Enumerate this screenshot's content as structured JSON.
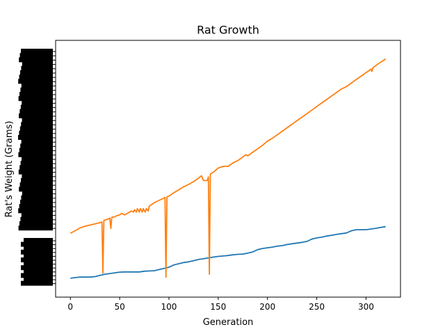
{
  "chart_data": {
    "type": "line",
    "title": "Rat Growth",
    "xlabel": "Generation",
    "ylabel": "Rat's Weight (Grams)",
    "xlim": [
      -15,
      335
    ],
    "ylim": [
      0,
      100
    ],
    "x_ticks": [
      0,
      50,
      100,
      150,
      200,
      250,
      300
    ],
    "y_tick_label_note": "dense overlapping unreadable labels along y axis",
    "grid": false,
    "legend": "none",
    "series": [
      {
        "color": "#1f77b4",
        "points": [
          [
            0,
            3.3
          ],
          [
            5,
            3.6
          ],
          [
            10,
            3.8
          ],
          [
            15,
            3.8
          ],
          [
            20,
            3.8
          ],
          [
            25,
            4.0
          ],
          [
            30,
            4.5
          ],
          [
            35,
            5.0
          ],
          [
            40,
            5.3
          ],
          [
            45,
            5.6
          ],
          [
            50,
            5.9
          ],
          [
            55,
            6.0
          ],
          [
            60,
            6.0
          ],
          [
            65,
            6.0
          ],
          [
            70,
            6.0
          ],
          [
            75,
            6.3
          ],
          [
            80,
            6.4
          ],
          [
            85,
            6.5
          ],
          [
            90,
            7.0
          ],
          [
            95,
            7.5
          ],
          [
            100,
            8.0
          ],
          [
            105,
            9.0
          ],
          [
            110,
            9.5
          ],
          [
            115,
            10.0
          ],
          [
            120,
            10.3
          ],
          [
            125,
            10.8
          ],
          [
            130,
            11.3
          ],
          [
            135,
            11.6
          ],
          [
            140,
            12.0
          ],
          [
            145,
            12.3
          ],
          [
            150,
            12.6
          ],
          [
            155,
            12.8
          ],
          [
            160,
            13.0
          ],
          [
            165,
            13.3
          ],
          [
            170,
            13.5
          ],
          [
            175,
            13.6
          ],
          [
            180,
            14.0
          ],
          [
            185,
            14.5
          ],
          [
            190,
            15.5
          ],
          [
            195,
            16.0
          ],
          [
            200,
            16.3
          ],
          [
            205,
            16.6
          ],
          [
            210,
            17.0
          ],
          [
            215,
            17.2
          ],
          [
            220,
            17.7
          ],
          [
            225,
            18.0
          ],
          [
            230,
            18.3
          ],
          [
            235,
            18.6
          ],
          [
            240,
            19.0
          ],
          [
            245,
            20.0
          ],
          [
            250,
            20.5
          ],
          [
            255,
            20.8
          ],
          [
            260,
            21.3
          ],
          [
            265,
            21.6
          ],
          [
            270,
            22.0
          ],
          [
            275,
            22.3
          ],
          [
            280,
            22.6
          ],
          [
            285,
            23.5
          ],
          [
            290,
            24.0
          ],
          [
            295,
            24.0
          ],
          [
            300,
            24.0
          ],
          [
            305,
            24.3
          ],
          [
            310,
            24.6
          ],
          [
            315,
            25.0
          ],
          [
            320,
            25.3
          ]
        ]
      },
      {
        "color": "#ff7f0e",
        "points": [
          [
            0,
            22.5
          ],
          [
            5,
            23.6
          ],
          [
            10,
            24.8
          ],
          [
            15,
            25.5
          ],
          [
            20,
            26.0
          ],
          [
            25,
            26.5
          ],
          [
            30,
            27.0
          ],
          [
            32,
            27.3
          ],
          [
            33,
            5.5
          ],
          [
            34,
            28.0
          ],
          [
            38,
            28.5
          ],
          [
            40,
            29.0
          ],
          [
            41,
            24.5
          ],
          [
            42,
            29.3
          ],
          [
            45,
            29.5
          ],
          [
            47,
            30.0
          ],
          [
            50,
            30.3
          ],
          [
            52,
            31.0
          ],
          [
            55,
            30.3
          ],
          [
            60,
            31.5
          ],
          [
            62,
            32.0
          ],
          [
            64,
            31.5
          ],
          [
            65,
            32.5
          ],
          [
            67,
            31.5
          ],
          [
            68,
            33.0
          ],
          [
            70,
            31.5
          ],
          [
            71,
            33.0
          ],
          [
            73,
            31.5
          ],
          [
            74,
            33.0
          ],
          [
            76,
            31.5
          ],
          [
            77,
            33.0
          ],
          [
            79,
            32.0
          ],
          [
            80,
            34.0
          ],
          [
            85,
            35.5
          ],
          [
            90,
            36.5
          ],
          [
            95,
            37.5
          ],
          [
            96,
            37.8
          ],
          [
            97,
            3.7
          ],
          [
            98,
            38.0
          ],
          [
            100,
            38.3
          ],
          [
            105,
            39.8
          ],
          [
            110,
            41.0
          ],
          [
            115,
            42.3
          ],
          [
            120,
            43.3
          ],
          [
            125,
            44.5
          ],
          [
            130,
            46.0
          ],
          [
            133,
            47.0
          ],
          [
            135,
            45.0
          ],
          [
            139,
            45.0
          ],
          [
            140,
            46.5
          ],
          [
            141,
            5.0
          ],
          [
            142,
            47.8
          ],
          [
            145,
            48.5
          ],
          [
            150,
            50.3
          ],
          [
            155,
            51.0
          ],
          [
            160,
            51.0
          ],
          [
            165,
            52.5
          ],
          [
            170,
            53.5
          ],
          [
            175,
            55.0
          ],
          [
            178,
            56.0
          ],
          [
            180,
            55.5
          ],
          [
            185,
            57.0
          ],
          [
            190,
            58.5
          ],
          [
            195,
            60.0
          ],
          [
            200,
            61.8
          ],
          [
            205,
            63.0
          ],
          [
            210,
            64.5
          ],
          [
            215,
            66.0
          ],
          [
            220,
            67.5
          ],
          [
            225,
            69.0
          ],
          [
            230,
            70.5
          ],
          [
            235,
            72.0
          ],
          [
            240,
            73.5
          ],
          [
            245,
            75.0
          ],
          [
            250,
            76.5
          ],
          [
            255,
            78.0
          ],
          [
            260,
            79.5
          ],
          [
            265,
            81.0
          ],
          [
            270,
            82.5
          ],
          [
            275,
            84.0
          ],
          [
            280,
            85.0
          ],
          [
            285,
            86.5
          ],
          [
            290,
            88.0
          ],
          [
            295,
            89.5
          ],
          [
            297,
            90.0
          ],
          [
            300,
            91.0
          ],
          [
            302,
            91.5
          ],
          [
            305,
            92.5
          ],
          [
            306,
            91.5
          ],
          [
            307,
            93.0
          ],
          [
            310,
            94.0
          ],
          [
            315,
            95.5
          ],
          [
            320,
            96.8
          ]
        ]
      }
    ]
  }
}
